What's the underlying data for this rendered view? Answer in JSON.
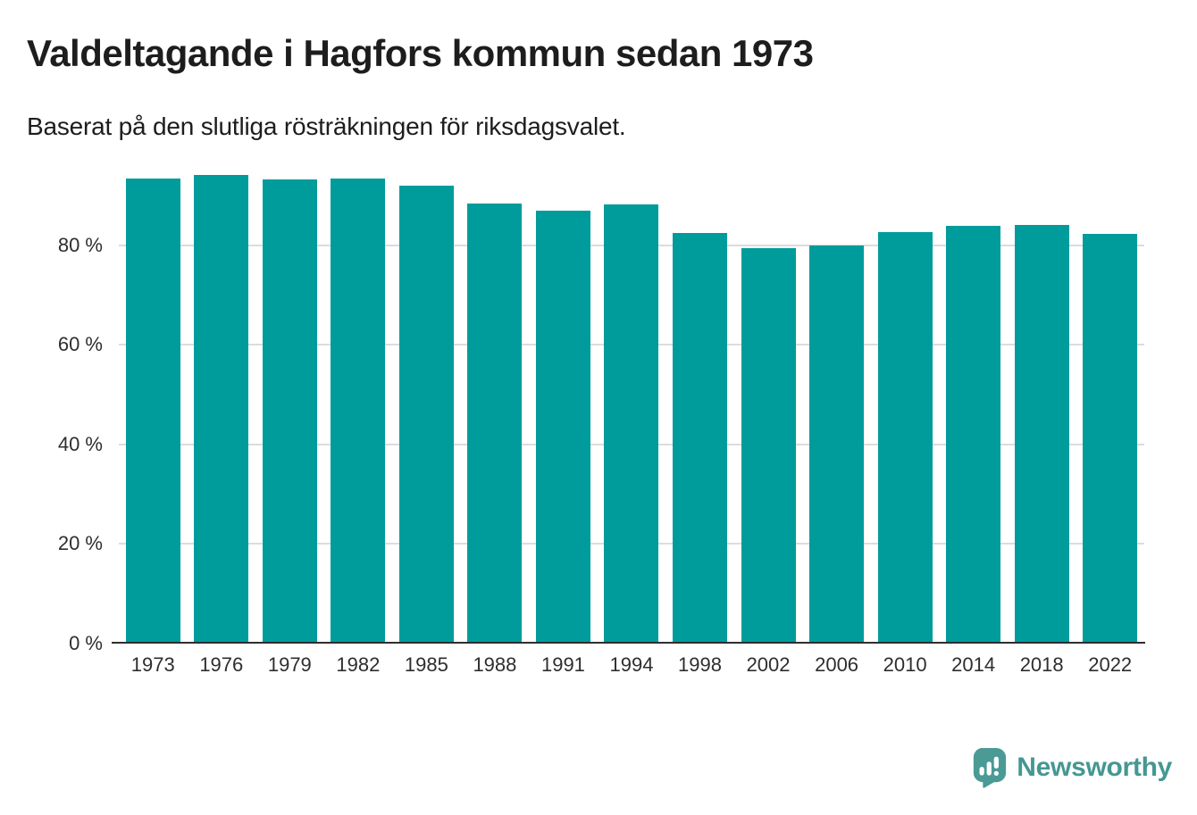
{
  "header": {
    "title": "Valdeltagande i Hagfors kommun sedan 1973",
    "subtitle": "Baserat på den slutliga rösträkningen för riksdagsvalet."
  },
  "chart_data": {
    "type": "bar",
    "title": "Valdeltagande i Hagfors kommun sedan 1973",
    "subtitle": "Baserat på den slutliga rösträkningen för riksdagsvalet.",
    "categories": [
      "1973",
      "1976",
      "1979",
      "1982",
      "1985",
      "1988",
      "1991",
      "1994",
      "1998",
      "2002",
      "2006",
      "2010",
      "2014",
      "2018",
      "2022"
    ],
    "values": [
      93.4,
      94.1,
      93.2,
      93.4,
      92.0,
      88.3,
      87.0,
      88.1,
      82.4,
      79.4,
      79.9,
      82.6,
      83.8,
      84.0,
      82.3
    ],
    "unit": "%",
    "xlabel": "",
    "ylabel": "",
    "ylim": [
      0,
      100
    ],
    "yticks": [
      0,
      20,
      40,
      60,
      80
    ],
    "ytick_labels": [
      "0 %",
      "20 %",
      "40 %",
      "60 %",
      "80 %"
    ],
    "grid": true,
    "legend": false,
    "bar_color": "#009c9c"
  },
  "branding": {
    "name": "Newsworthy",
    "icon": "newsworthy-speech-bubble-bar-chart-icon",
    "color": "#459792"
  },
  "theme": {
    "background": "#ffffff",
    "grid_color": "#dcdcdc",
    "axis_color": "#2e2e2e",
    "text_color": "#1d1d1d",
    "tick_color": "#2e2e2e"
  }
}
